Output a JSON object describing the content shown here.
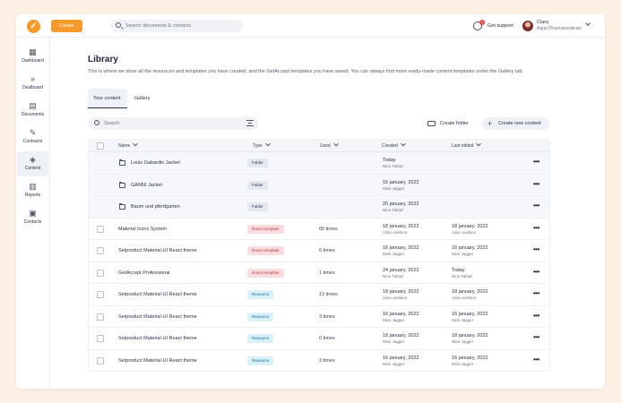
{
  "topbar": {
    "create_label": "Create",
    "search_placeholder": "Search documents & contacts",
    "support_label": "Get support",
    "support_badge": "1",
    "user_name": "Clara",
    "user_org": "Aqua Pharmaceuticals"
  },
  "sidebar": {
    "items": [
      {
        "label": "Dashboard",
        "icon": "dashboard-icon"
      },
      {
        "label": "Dealboard",
        "icon": "dealboard-icon"
      },
      {
        "label": "Documents",
        "icon": "documents-icon"
      },
      {
        "label": "Contracts",
        "icon": "contracts-icon"
      },
      {
        "label": "Content",
        "icon": "content-icon",
        "active": true
      },
      {
        "label": "Reports",
        "icon": "reports-icon"
      },
      {
        "label": "Contacts",
        "icon": "contacts-icon"
      }
    ]
  },
  "page": {
    "title": "Library",
    "subtitle": "This is where we store all the resources and templates you have created, and the GetAccept templates you have saved. You can always find more ready-made content templates under the Gallery tab.",
    "tabs": [
      {
        "label": "Your content",
        "active": true
      },
      {
        "label": "Gallery",
        "active": false
      }
    ],
    "search_placeholder": "Search",
    "create_folder_label": "Create folder",
    "create_content_label": "Create new content"
  },
  "table": {
    "headers": {
      "name": "Name",
      "type": "Type",
      "used": "Used",
      "created": "Created",
      "edited": "Last edited"
    },
    "rows": [
      {
        "name": "Louis Gabardin Jacket",
        "type": "Folder",
        "kind": "folder",
        "used": "",
        "created": "Today",
        "created_by": "Nino Tabiaz",
        "edited": "",
        "edited_by": ""
      },
      {
        "name": "GANNI Jacket",
        "type": "Folder",
        "kind": "folder",
        "used": "",
        "created": "16 january, 2022",
        "created_by": "Mick Jagger",
        "edited": "",
        "edited_by": ""
      },
      {
        "name": "Baum und pferdgarten",
        "type": "Folder",
        "kind": "folder",
        "used": "",
        "created": "20 january, 2022",
        "created_by": "Nino Tabiaz",
        "edited": "",
        "edited_by": ""
      },
      {
        "name": "Material Icons System",
        "type": "Room template",
        "kind": "room",
        "used": "65 times",
        "created": "18 january, 2022",
        "created_by": "Ada Lovelace",
        "edited": "18 january, 2022",
        "edited_by": "Ada Lovelace"
      },
      {
        "name": "Setproduct Material-UI React theme",
        "type": "Room template",
        "kind": "room",
        "used": "6 times",
        "created": "16 january, 2022",
        "created_by": "Mick Jagger",
        "edited": "16 january, 2022",
        "edited_by": "Mick Jagger"
      },
      {
        "name": "GetAccept Professional",
        "type": "Room template",
        "kind": "room",
        "used": "1 times",
        "created": "24 january, 2022",
        "created_by": "Nino Tabiaz",
        "edited": "Today",
        "edited_by": "Nino Tabiaz"
      },
      {
        "name": "Setproduct Material-UI React theme",
        "type": "Resource",
        "kind": "resource",
        "used": "13 times",
        "created": "18 january, 2022",
        "created_by": "Ada Lovelace",
        "edited": "18 january, 2022",
        "edited_by": "Ada Lovelace"
      },
      {
        "name": "Setproduct Material-UI React theme",
        "type": "Resource",
        "kind": "resource",
        "used": "3 times",
        "created": "16 january, 2022",
        "created_by": "Mick Jagger",
        "edited": "16 january, 2022",
        "edited_by": "Mick Jagger"
      },
      {
        "name": "Setproduct Material-UI React theme",
        "type": "Resource",
        "kind": "resource",
        "used": "0 times",
        "created": "18 january, 2022",
        "created_by": "Mick Jagger",
        "edited": "18 january, 2022",
        "edited_by": "Mick Jagger"
      },
      {
        "name": "Setproduct Material-UI React theme",
        "type": "Resource",
        "kind": "resource",
        "used": "3 times",
        "created": "16 january, 2022",
        "created_by": "Mick Jagger",
        "edited": "16 january, 2022",
        "edited_by": "Mick Jagger"
      }
    ]
  },
  "colors": {
    "accent": "#f39a2b",
    "page_background": "#fcefe3",
    "room_tag": "#fbdde0",
    "resource_tag": "#d9f1fb",
    "folder_tag": "#e4e8f1"
  }
}
